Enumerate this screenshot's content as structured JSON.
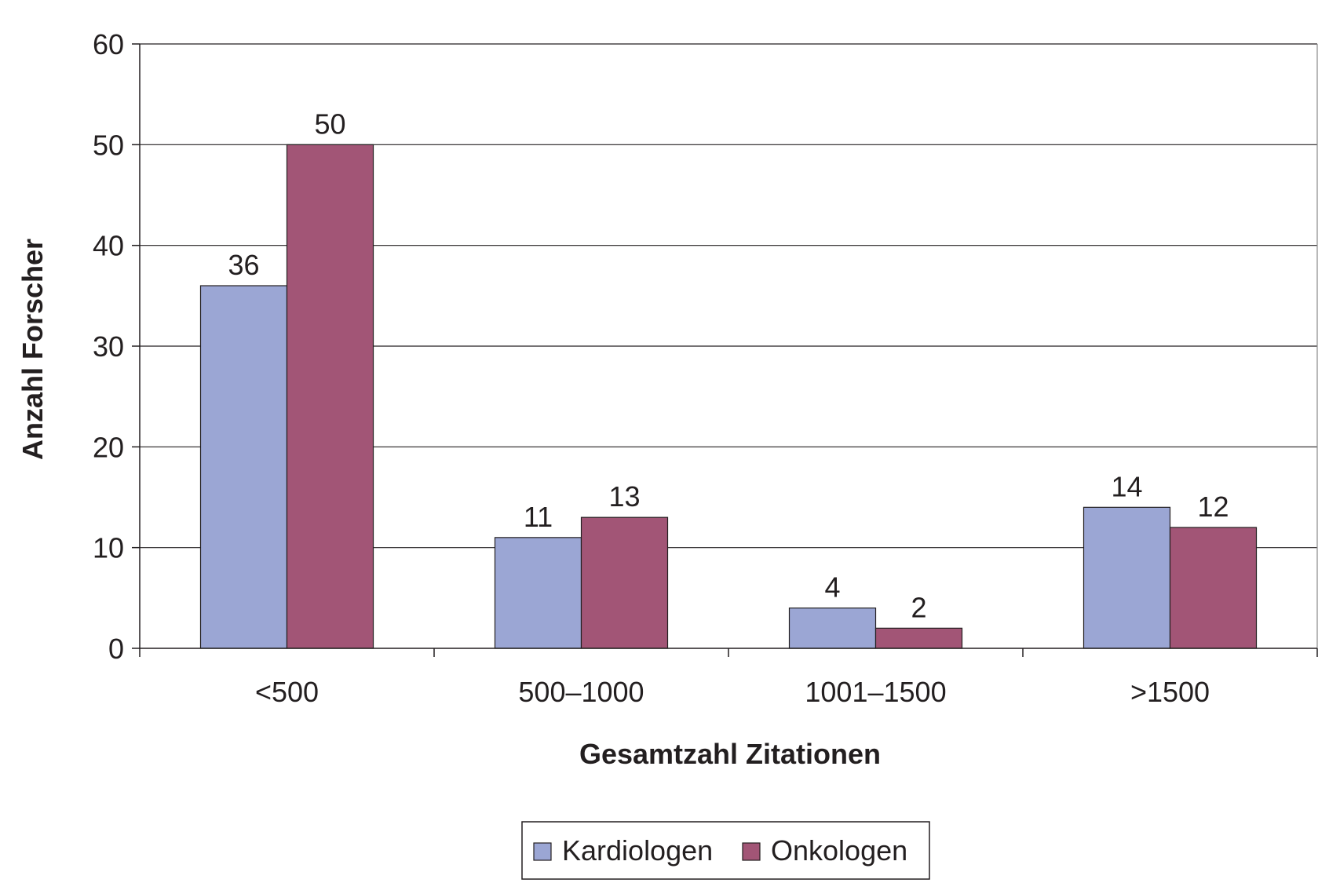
{
  "chart_data": {
    "type": "bar",
    "categories": [
      "<500",
      "500–1000",
      "1001–1500",
      ">1500"
    ],
    "series": [
      {
        "name": "Kardiologen",
        "values": [
          36,
          11,
          4,
          14
        ],
        "color": "#9ba6d4"
      },
      {
        "name": "Onkologen",
        "values": [
          50,
          13,
          2,
          12
        ],
        "color": "#a25576"
      }
    ],
    "xlabel": "Gesamtzahl Zitationen",
    "ylabel": "Anzahl Forscher",
    "ylim": [
      0,
      60
    ],
    "yticks": [
      0,
      10,
      20,
      30,
      40,
      50,
      60
    ],
    "grid": true,
    "legend_position": "bottom"
  }
}
